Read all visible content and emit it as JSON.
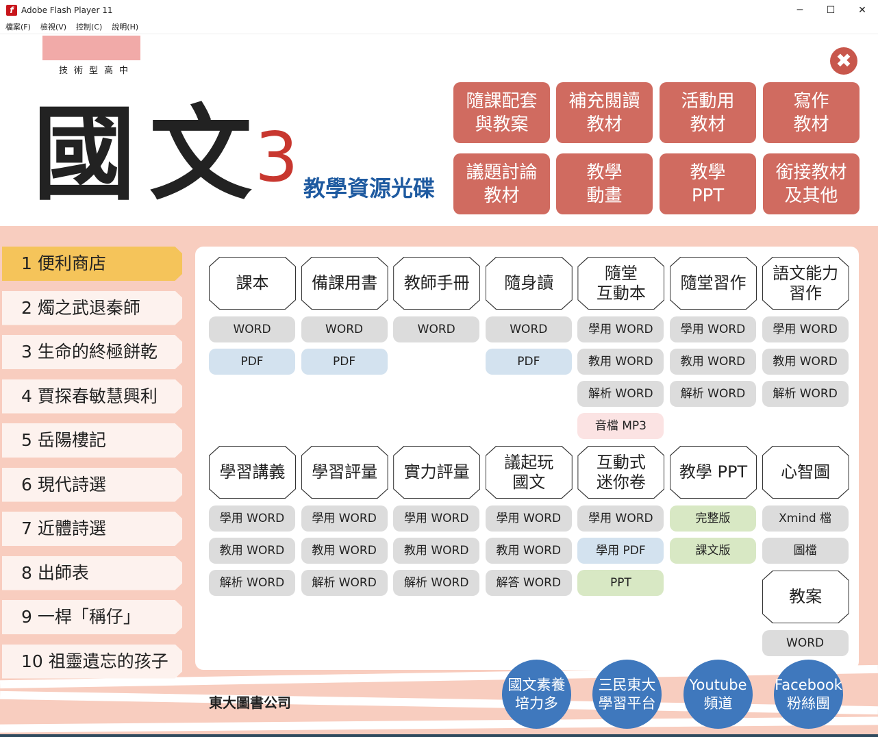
{
  "window": {
    "title": "Adobe Flash Player 11",
    "minimize": "─",
    "maximize": "☐",
    "close": "✕"
  },
  "menu": [
    "檔案(F)",
    "檢視(V)",
    "控制(C)",
    "說明(H)"
  ],
  "header": {
    "school": "技術型高中",
    "title": "國文",
    "number": "3",
    "subtitle": "教學資源光碟",
    "close_icon": "✖"
  },
  "top_buttons": [
    "隨課配套\n與教案",
    "補充閱讀\n教材",
    "活動用\n教材",
    "寫作\n教材",
    "議題討論\n教材",
    "教學\n動畫",
    "教學\nPPT",
    "銜接教材\n及其他"
  ],
  "lessons": [
    "1 便利商店",
    "2 燭之武退秦師",
    "3 生命的終極餅乾",
    "4 賈探春敏慧興利",
    "5 岳陽樓記",
    "6 現代詩選",
    "7 近體詩選",
    "8 出師表",
    "9 一桿「稱仔」",
    "10 祖靈遺忘的孩子"
  ],
  "colors": {
    "grey": "#dcdcdc",
    "blue": "#d3e2ef",
    "pink": "#fbe3e3",
    "green": "#d8e8c4",
    "active_lesson": "#f5c45a",
    "accent": "#d06b60",
    "social": "#3f78bd"
  },
  "groups": [
    {
      "title": "課本",
      "buttons": [
        {
          "label": "WORD",
          "color": "grey"
        },
        {
          "label": "PDF",
          "color": "blue"
        }
      ]
    },
    {
      "title": "備課用書",
      "buttons": [
        {
          "label": "WORD",
          "color": "grey"
        },
        {
          "label": "PDF",
          "color": "blue"
        }
      ]
    },
    {
      "title": "教師手冊",
      "buttons": [
        {
          "label": "WORD",
          "color": "grey"
        }
      ]
    },
    {
      "title": "隨身讀",
      "buttons": [
        {
          "label": "WORD",
          "color": "grey"
        },
        {
          "label": "PDF",
          "color": "blue"
        }
      ]
    },
    {
      "title": "隨堂\n互動本",
      "buttons": [
        {
          "label": "學用 WORD",
          "color": "grey"
        },
        {
          "label": "教用 WORD",
          "color": "grey"
        },
        {
          "label": "解析 WORD",
          "color": "grey"
        },
        {
          "label": "音檔 MP3",
          "color": "pink"
        }
      ]
    },
    {
      "title": "隨堂習作",
      "buttons": [
        {
          "label": "學用 WORD",
          "color": "grey"
        },
        {
          "label": "教用 WORD",
          "color": "grey"
        },
        {
          "label": "解析 WORD",
          "color": "grey"
        }
      ]
    },
    {
      "title": "語文能力\n習作",
      "buttons": [
        {
          "label": "學用 WORD",
          "color": "grey"
        },
        {
          "label": "教用 WORD",
          "color": "grey"
        },
        {
          "label": "解析 WORD",
          "color": "grey"
        }
      ]
    },
    {
      "title": "學習講義",
      "buttons": [
        {
          "label": "學用 WORD",
          "color": "grey"
        },
        {
          "label": "教用 WORD",
          "color": "grey"
        },
        {
          "label": "解析 WORD",
          "color": "grey"
        }
      ]
    },
    {
      "title": "學習評量",
      "buttons": [
        {
          "label": "學用 WORD",
          "color": "grey"
        },
        {
          "label": "教用 WORD",
          "color": "grey"
        },
        {
          "label": "解析 WORD",
          "color": "grey"
        }
      ]
    },
    {
      "title": "實力評量",
      "buttons": [
        {
          "label": "學用 WORD",
          "color": "grey"
        },
        {
          "label": "教用 WORD",
          "color": "grey"
        },
        {
          "label": "解析 WORD",
          "color": "grey"
        }
      ]
    },
    {
      "title": "議起玩\n國文",
      "buttons": [
        {
          "label": "學用 WORD",
          "color": "grey"
        },
        {
          "label": "教用 WORD",
          "color": "grey"
        },
        {
          "label": "解答 WORD",
          "color": "grey"
        }
      ]
    },
    {
      "title": "互動式\n迷你卷",
      "buttons": [
        {
          "label": "學用 WORD",
          "color": "grey"
        },
        {
          "label": "學用 PDF",
          "color": "blue"
        },
        {
          "label": "PPT",
          "color": "green"
        }
      ]
    },
    {
      "title": "教學 PPT",
      "buttons": [
        {
          "label": "完整版",
          "color": "green"
        },
        {
          "label": "課文版",
          "color": "green"
        }
      ]
    },
    {
      "title": "心智圖",
      "buttons": [
        {
          "label": "Xmind 檔",
          "color": "grey"
        },
        {
          "label": "圖檔",
          "color": "grey"
        }
      ]
    },
    {
      "title": "教案",
      "buttons": [
        {
          "label": "WORD",
          "color": "grey"
        }
      ]
    }
  ],
  "social": [
    "國文素養\n培力多",
    "三民東大\n學習平台",
    "Youtube\n頻道",
    "Facebook\n粉絲團"
  ],
  "publisher": "東大圖書公司"
}
